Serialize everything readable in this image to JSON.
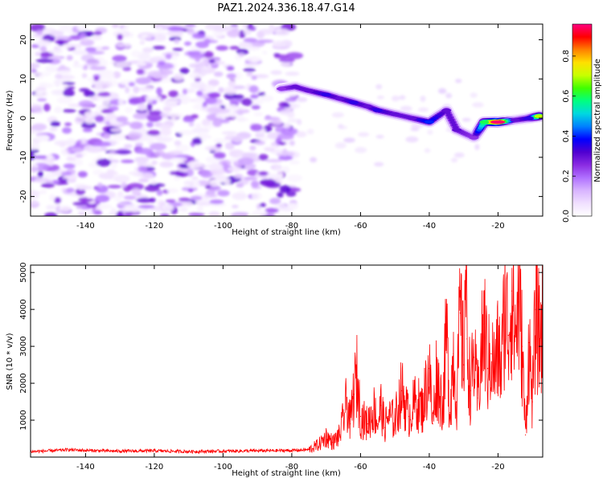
{
  "figure_title": "PAZ1.2024.336.18.47.G14",
  "chart_data": [
    {
      "type": "heatmap",
      "xlabel": "Height of straight line (km)",
      "ylabel": "Frequency (Hz)",
      "xlim": [
        -156,
        -7
      ],
      "ylim": [
        -25,
        24
      ],
      "xticks": [
        -140,
        -120,
        -100,
        -80,
        -60,
        -40,
        -20
      ],
      "yticks": [
        -20,
        -10,
        0,
        10,
        20
      ],
      "colorbar": {
        "label": "Normalized spectral amplitude",
        "range": [
          0,
          0.96
        ],
        "ticks": [
          0.0,
          0.2,
          0.4,
          0.6,
          0.8
        ],
        "colormap": [
          "#ffffff",
          "#f0e0ff",
          "#d8b4ff",
          "#b070ff",
          "#8a2be2",
          "#5000d0",
          "#0000ff",
          "#0080ff",
          "#00d8e0",
          "#00ff80",
          "#40ff00",
          "#c8ff00",
          "#ffe000",
          "#ff8000",
          "#ff0000",
          "#ff0080"
        ]
      },
      "noise_region_x": [
        -156,
        -79
      ],
      "noise_region_amplitude": [
        0.0,
        0.3
      ],
      "signal_ridge": [
        {
          "x": -83,
          "freq": 7.5,
          "amp": 0.25
        },
        {
          "x": -79,
          "freq": 8.0,
          "amp": 0.3
        },
        {
          "x": -75,
          "freq": 7.0,
          "amp": 0.3
        },
        {
          "x": -70,
          "freq": 6.0,
          "amp": 0.35
        },
        {
          "x": -66,
          "freq": 5.0,
          "amp": 0.3
        },
        {
          "x": -62,
          "freq": 4.0,
          "amp": 0.35
        },
        {
          "x": -58,
          "freq": 3.0,
          "amp": 0.3
        },
        {
          "x": -55,
          "freq": 2.0,
          "amp": 0.35
        },
        {
          "x": -50,
          "freq": 1.0,
          "amp": 0.3
        },
        {
          "x": -45,
          "freq": 0.0,
          "amp": 0.3
        },
        {
          "x": -40,
          "freq": -1.0,
          "amp": 0.4
        },
        {
          "x": -35,
          "freq": 2.0,
          "amp": 0.3
        },
        {
          "x": -32,
          "freq": -3.0,
          "amp": 0.3
        },
        {
          "x": -27,
          "freq": -5.0,
          "amp": 0.25
        },
        {
          "x": -24,
          "freq": -1.0,
          "amp": 0.6
        },
        {
          "x": -20,
          "freq": -1.0,
          "amp": 0.95
        },
        {
          "x": -15,
          "freq": -0.5,
          "amp": 0.3
        },
        {
          "x": -11,
          "freq": 0.0,
          "amp": 0.35
        },
        {
          "x": -8,
          "freq": 0.5,
          "amp": 0.7
        }
      ]
    },
    {
      "type": "line",
      "xlabel": "Height of straight line (km)",
      "ylabel": "SNR (10 * v/v)",
      "xlim": [
        -156,
        -7
      ],
      "ylim": [
        0,
        5200
      ],
      "xticks": [
        -140,
        -120,
        -100,
        -80,
        -60,
        -40,
        -20
      ],
      "yticks": [
        1000,
        2000,
        3000,
        4000,
        5000
      ],
      "color": "#ff0000",
      "series": [
        {
          "x": [
            -156,
            -150,
            -145,
            -140,
            -130,
            -120,
            -110,
            -100,
            -90,
            -80,
            -75,
            -72,
            -70,
            -68,
            -66,
            -64,
            -63,
            -62,
            -61,
            -60,
            -58,
            -56,
            -55,
            -54,
            -53,
            -52,
            -50,
            -48,
            -46,
            -44,
            -42,
            -40,
            -39,
            -38,
            -36,
            -35,
            -34,
            -33,
            -32,
            -31,
            -30,
            -29.5,
            -29,
            -28,
            -27,
            -26,
            -25,
            -24,
            -23,
            -22,
            -21,
            -20,
            -19,
            -18,
            -17,
            -16,
            -15,
            -14,
            -13,
            -12,
            -11,
            -10,
            -9,
            -8,
            -7
          ],
          "y": [
            150,
            170,
            200,
            180,
            160,
            170,
            150,
            160,
            170,
            180,
            200,
            350,
            550,
            400,
            600,
            1500,
            900,
            1700,
            2200,
            1100,
            900,
            1300,
            900,
            1400,
            800,
            1100,
            1000,
            1800,
            1100,
            1500,
            1300,
            2400,
            900,
            2200,
            1400,
            3400,
            1200,
            2800,
            1500,
            3900,
            2500,
            5200,
            3200,
            1800,
            2700,
            1600,
            2600,
            3600,
            2400,
            2800,
            2300,
            2900,
            2400,
            4200,
            3300,
            4500,
            3300,
            4200,
            3000,
            600,
            3100,
            1500,
            4000,
            3200,
            3600
          ]
        }
      ]
    }
  ]
}
